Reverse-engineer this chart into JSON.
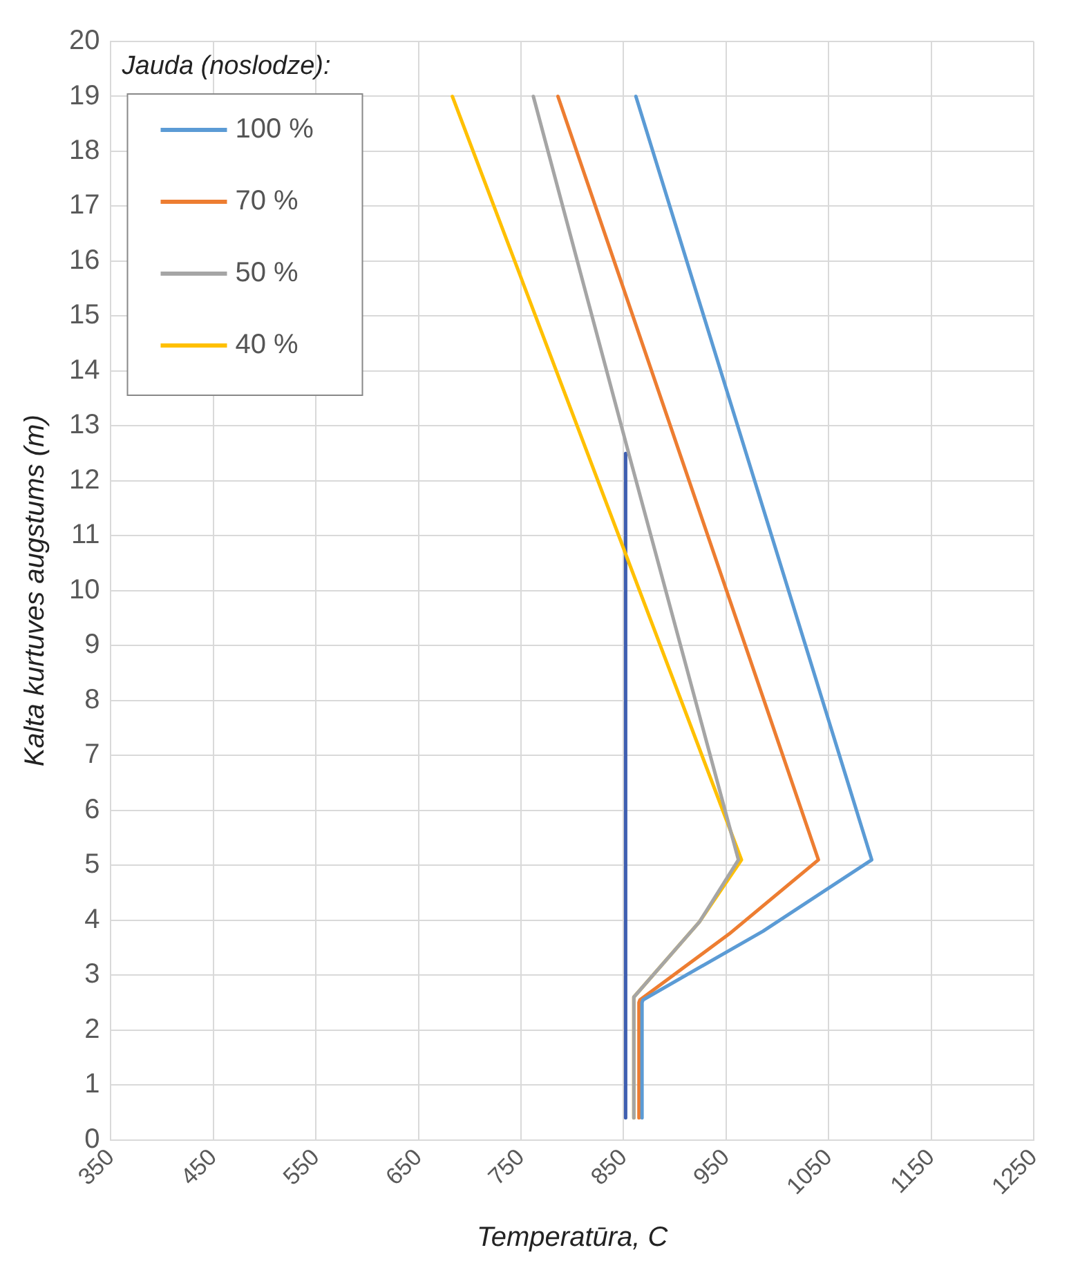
{
  "chart_data": {
    "type": "line",
    "xlabel": "Temperatūra, C",
    "ylabel": "Kalta kurtuves augstums (m)",
    "legend_title": "Jauda (noslodze):",
    "xlim": [
      350,
      1250
    ],
    "xticks": [
      350,
      450,
      550,
      650,
      750,
      850,
      950,
      1050,
      1150,
      1250
    ],
    "ylim": [
      0,
      20
    ],
    "yticks": [
      0,
      1,
      2,
      3,
      4,
      5,
      6,
      7,
      8,
      9,
      10,
      11,
      12,
      13,
      14,
      15,
      16,
      17,
      18,
      19,
      20
    ],
    "grid": true,
    "legend": "top left",
    "marker": "none",
    "line_style": "solid",
    "series": [
      {
        "name": "100 %",
        "color": "#5b9bd5",
        "x": [
          868,
          868,
          869,
          986,
          1092,
          862
        ],
        "values": [
          0.4,
          2.5,
          2.55,
          3.8,
          5.1,
          19
        ]
      },
      {
        "name": "70 %",
        "color": "#ed7d31",
        "x": [
          865,
          865,
          866,
          953,
          1040,
          786
        ],
        "values": [
          0.4,
          2.5,
          2.55,
          3.75,
          5.1,
          19
        ]
      },
      {
        "name": "50 %",
        "color": "#a5a5a5",
        "x": [
          860,
          860,
          924,
          962,
          855,
          762
        ],
        "values": [
          0.4,
          2.6,
          3.97,
          5.1,
          12.5,
          19
        ]
      },
      {
        "name": "40 %",
        "color": "#ffc000",
        "x": [
          860,
          860,
          924,
          965,
          683
        ],
        "values": [
          0.4,
          2.6,
          3.97,
          5.1,
          19
        ]
      },
      {
        "color": "#3f5fb0",
        "x": [
          852,
          852
        ],
        "values": [
          0.4,
          12.5
        ]
      }
    ]
  }
}
